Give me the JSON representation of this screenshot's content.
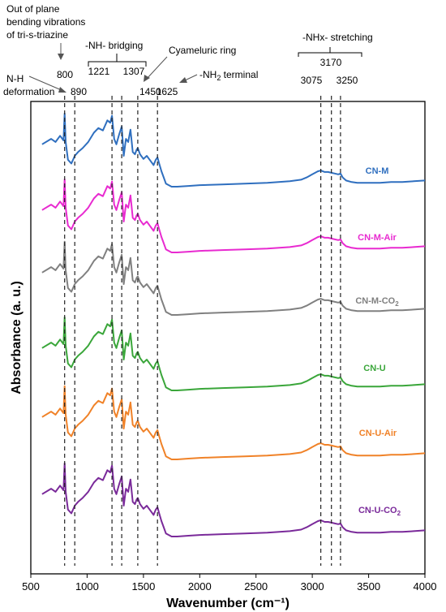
{
  "chart_data": {
    "type": "line",
    "xlabel": "Wavenumber (cm⁻¹)",
    "ylabel": "Absorbance (a. u.)",
    "xlim": [
      500,
      4000
    ],
    "x_ticks": [
      "500",
      "1000",
      "1500",
      "2000",
      "2500",
      "3000",
      "3500",
      "4000"
    ],
    "grid": false,
    "series": [
      {
        "name": "CN-M",
        "sub": "",
        "color": "#2f6fbf",
        "offset": 0
      },
      {
        "name": "CN-M-Air",
        "sub": "",
        "color": "#e82ad0",
        "offset": 1
      },
      {
        "name": "CN-M-CO",
        "sub": "2",
        "color": "#808080",
        "offset": 2
      },
      {
        "name": "CN-U",
        "sub": "",
        "color": "#3aa63a",
        "offset": 3
      },
      {
        "name": "CN-U-Air",
        "sub": "",
        "color": "#f08228",
        "offset": 4
      },
      {
        "name": "CN-U-CO",
        "sub": "2",
        "color": "#7a2a9a",
        "offset": 5
      }
    ],
    "spectrum_shape": {
      "x": [
        600,
        680,
        720,
        760,
        790,
        800,
        810,
        830,
        860,
        890,
        920,
        960,
        1010,
        1060,
        1100,
        1140,
        1180,
        1205,
        1221,
        1240,
        1260,
        1285,
        1307,
        1325,
        1345,
        1365,
        1385,
        1405,
        1425,
        1440,
        1450,
        1470,
        1500,
        1530,
        1560,
        1590,
        1610,
        1625,
        1640,
        1660,
        1680,
        1700,
        1750,
        1800,
        1900,
        2000,
        2200,
        2400,
        2600,
        2800,
        2900,
        2950,
        3000,
        3050,
        3075,
        3110,
        3140,
        3170,
        3200,
        3230,
        3250,
        3270,
        3300,
        3350,
        3400,
        3500,
        3600,
        3700,
        3800,
        3900,
        4000
      ],
      "y": [
        0.55,
        0.62,
        0.58,
        0.66,
        0.6,
        0.95,
        0.58,
        0.35,
        0.3,
        0.4,
        0.45,
        0.5,
        0.58,
        0.7,
        0.76,
        0.73,
        0.86,
        0.83,
        0.92,
        0.62,
        0.55,
        0.68,
        0.78,
        0.4,
        0.62,
        0.58,
        0.74,
        0.45,
        0.42,
        0.48,
        0.5,
        0.42,
        0.36,
        0.4,
        0.34,
        0.28,
        0.35,
        0.38,
        0.3,
        0.2,
        0.12,
        0.04,
        0.0,
        0.0,
        0.01,
        0.02,
        0.03,
        0.04,
        0.05,
        0.07,
        0.09,
        0.12,
        0.16,
        0.2,
        0.21,
        0.19,
        0.19,
        0.18,
        0.17,
        0.16,
        0.17,
        0.12,
        0.08,
        0.06,
        0.05,
        0.05,
        0.05,
        0.06,
        0.06,
        0.07,
        0.08
      ]
    },
    "reference_lines": [
      {
        "x": 800,
        "label": "800"
      },
      {
        "x": 890,
        "label": "890"
      },
      {
        "x": 1221,
        "label": "1221"
      },
      {
        "x": 1307,
        "label": "1307"
      },
      {
        "x": 1450,
        "label": "1450"
      },
      {
        "x": 1625,
        "label": "1625"
      },
      {
        "x": 3075,
        "label": "3075"
      },
      {
        "x": 3170,
        "label": "3170"
      },
      {
        "x": 3250,
        "label": "3250"
      }
    ],
    "annotations": {
      "oop_lines": [
        "Out of plane",
        "bending vibrations",
        "of tri-s-triazine"
      ],
      "nh_lines": [
        "N-H",
        "deformation"
      ],
      "bridging": "-NH- bridging",
      "cyameluric": "Cyameluric ring",
      "nh2_pre": "-NH",
      "nh2_sub": "2",
      "nh2_post": " terminal",
      "stretching": "-NHx- stretching"
    }
  }
}
